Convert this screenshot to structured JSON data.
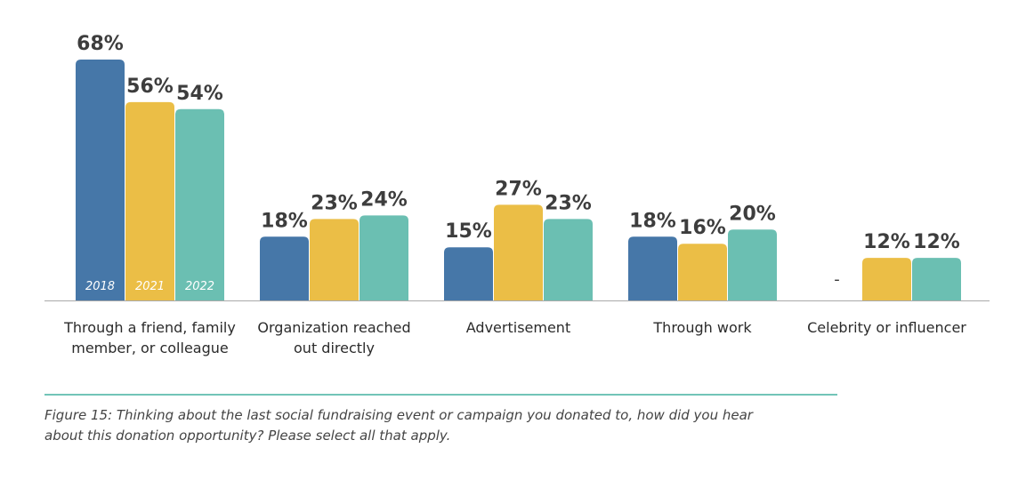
{
  "chart_data": {
    "type": "bar",
    "categories": [
      [
        "Through a friend, family",
        "member, or colleague"
      ],
      [
        "Organization reached",
        "out directly"
      ],
      [
        "Advertisement"
      ],
      [
        "Through work"
      ],
      [
        "Celebrity or influencer"
      ]
    ],
    "series": [
      {
        "name": "2018",
        "color": "#4677a8",
        "values": [
          68,
          18,
          15,
          18,
          null
        ],
        "labels": [
          "68%",
          "18%",
          "15%",
          "18%",
          "-"
        ]
      },
      {
        "name": "2021",
        "color": "#ebbe46",
        "values": [
          56,
          23,
          27,
          16,
          12
        ],
        "labels": [
          "56%",
          "23%",
          "27%",
          "16%",
          "12%"
        ]
      },
      {
        "name": "2022",
        "color": "#6bbfb2",
        "values": [
          54,
          24,
          23,
          20,
          12
        ],
        "labels": [
          "54%",
          "24%",
          "23%",
          "20%",
          "12%"
        ]
      }
    ],
    "ylim": [
      0,
      68
    ],
    "legend_placement": "inside-first-group-bars",
    "grid": false
  },
  "caption": "Figure 15: Thinking about the last social fundraising event or campaign you donated to, how did you hear about this donation opportunity? Please select all that apply.",
  "colors": {
    "axis": "#aaaaaa",
    "rule": "#72c4b8",
    "text": "#3d3d3d"
  }
}
